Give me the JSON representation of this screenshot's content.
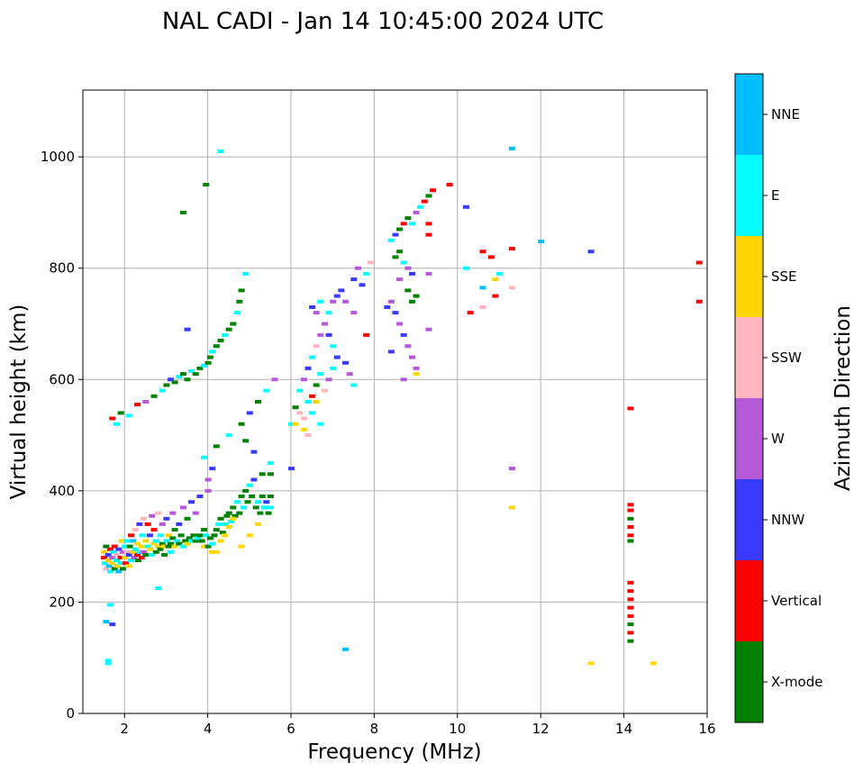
{
  "chart_data": {
    "type": "scatter",
    "title": "NAL CADI - Jan 14 10:45:00 2024 UTC",
    "xlabel": "Frequency (MHz)",
    "ylabel": "Virtual height (km)",
    "xlim": [
      1,
      16
    ],
    "ylim": [
      0,
      1120
    ],
    "xticks": [
      2,
      4,
      6,
      8,
      10,
      12,
      14,
      16
    ],
    "yticks": [
      0,
      200,
      400,
      600,
      800,
      1000
    ],
    "grid": true,
    "colorbar": {
      "label": "Azimuth Direction",
      "categories": [
        "X-mode",
        "Vertical",
        "NNW",
        "W",
        "SSW",
        "SSE",
        "E",
        "NNE"
      ],
      "colors": [
        "#008000",
        "#ff0000",
        "#3a3aff",
        "#b45ad6",
        "#ffb6c1",
        "#ffd700",
        "#00ffff",
        "#00bfff"
      ]
    },
    "points": [
      [
        1.5,
        290,
        5
      ],
      [
        1.5,
        280,
        1
      ],
      [
        1.52,
        270,
        6
      ],
      [
        1.55,
        300,
        0
      ],
      [
        1.55,
        260,
        4
      ],
      [
        1.6,
        285,
        2
      ],
      [
        1.6,
        275,
        5
      ],
      [
        1.62,
        265,
        7
      ],
      [
        1.65,
        295,
        1
      ],
      [
        1.65,
        255,
        6
      ],
      [
        1.7,
        280,
        3
      ],
      [
        1.7,
        270,
        5
      ],
      [
        1.72,
        290,
        6
      ],
      [
        1.75,
        260,
        0
      ],
      [
        1.75,
        300,
        1
      ],
      [
        1.8,
        285,
        4
      ],
      [
        1.8,
        275,
        6
      ],
      [
        1.82,
        265,
        5
      ],
      [
        1.85,
        295,
        2
      ],
      [
        1.85,
        255,
        7
      ],
      [
        1.9,
        280,
        1
      ],
      [
        1.9,
        270,
        6
      ],
      [
        1.92,
        310,
        5
      ],
      [
        1.95,
        290,
        3
      ],
      [
        1.95,
        260,
        0
      ],
      [
        2.0,
        300,
        6
      ],
      [
        2.0,
        280,
        5
      ],
      [
        2.02,
        270,
        1
      ],
      [
        2.05,
        290,
        4
      ],
      [
        2.05,
        310,
        6
      ],
      [
        2.1,
        285,
        2
      ],
      [
        2.1,
        265,
        5
      ],
      [
        2.12,
        300,
        0
      ],
      [
        2.15,
        320,
        1
      ],
      [
        2.15,
        275,
        6
      ],
      [
        2.2,
        290,
        5
      ],
      [
        2.2,
        310,
        7
      ],
      [
        2.22,
        280,
        3
      ],
      [
        2.25,
        295,
        6
      ],
      [
        2.25,
        330,
        4
      ],
      [
        2.3,
        285,
        1
      ],
      [
        2.3,
        305,
        5
      ],
      [
        2.32,
        275,
        0
      ],
      [
        2.35,
        290,
        6
      ],
      [
        2.35,
        340,
        2
      ],
      [
        2.4,
        300,
        5
      ],
      [
        2.4,
        280,
        1
      ],
      [
        2.42,
        320,
        6
      ],
      [
        2.45,
        290,
        3
      ],
      [
        2.45,
        350,
        4
      ],
      [
        2.5,
        310,
        5
      ],
      [
        2.5,
        285,
        0
      ],
      [
        2.55,
        300,
        6
      ],
      [
        2.55,
        340,
        1
      ],
      [
        2.6,
        295,
        5
      ],
      [
        2.6,
        320,
        2
      ],
      [
        2.65,
        285,
        6
      ],
      [
        2.65,
        355,
        3
      ],
      [
        2.7,
        305,
        5
      ],
      [
        2.7,
        330,
        1
      ],
      [
        2.75,
        290,
        0
      ],
      [
        2.75,
        310,
        6
      ],
      [
        2.8,
        300,
        5
      ],
      [
        2.8,
        360,
        4
      ],
      [
        2.85,
        295,
        0
      ],
      [
        2.85,
        320,
        6
      ],
      [
        2.9,
        305,
        0
      ],
      [
        2.9,
        340,
        3
      ],
      [
        2.95,
        300,
        5
      ],
      [
        2.95,
        285,
        0
      ],
      [
        3.0,
        310,
        6
      ],
      [
        3.0,
        350,
        2
      ],
      [
        3.05,
        300,
        0
      ],
      [
        3.05,
        320,
        5
      ],
      [
        3.1,
        305,
        0
      ],
      [
        3.1,
        290,
        6
      ],
      [
        3.15,
        315,
        0
      ],
      [
        3.15,
        360,
        3
      ],
      [
        3.2,
        300,
        5
      ],
      [
        3.2,
        330,
        0
      ],
      [
        3.25,
        310,
        6
      ],
      [
        3.3,
        305,
        0
      ],
      [
        3.3,
        340,
        2
      ],
      [
        3.35,
        320,
        0
      ],
      [
        3.4,
        300,
        6
      ],
      [
        3.4,
        370,
        3
      ],
      [
        3.45,
        310,
        0
      ],
      [
        3.5,
        305,
        5
      ],
      [
        3.5,
        350,
        0
      ],
      [
        3.55,
        315,
        0
      ],
      [
        3.6,
        310,
        6
      ],
      [
        3.6,
        380,
        2
      ],
      [
        3.65,
        320,
        0
      ],
      [
        3.7,
        310,
        0
      ],
      [
        3.7,
        360,
        3
      ],
      [
        3.75,
        315,
        6
      ],
      [
        3.8,
        320,
        0
      ],
      [
        3.8,
        390,
        2
      ],
      [
        3.85,
        310,
        0
      ],
      [
        3.9,
        300,
        5
      ],
      [
        3.9,
        330,
        0
      ],
      [
        3.95,
        320,
        6
      ],
      [
        4.0,
        300,
        0
      ],
      [
        4.0,
        400,
        3
      ],
      [
        4.05,
        315,
        0
      ],
      [
        4.1,
        305,
        6
      ],
      [
        4.15,
        320,
        0
      ],
      [
        4.2,
        330,
        0
      ],
      [
        4.25,
        340,
        6
      ],
      [
        4.3,
        310,
        5
      ],
      [
        4.3,
        350,
        0
      ],
      [
        4.35,
        325,
        0
      ],
      [
        4.4,
        340,
        6
      ],
      [
        4.45,
        355,
        0
      ],
      [
        4.5,
        335,
        5
      ],
      [
        4.5,
        360,
        0
      ],
      [
        4.55,
        345,
        6
      ],
      [
        4.6,
        370,
        0
      ],
      [
        4.65,
        355,
        0
      ],
      [
        4.7,
        380,
        6
      ],
      [
        4.75,
        360,
        0
      ],
      [
        4.8,
        390,
        0
      ],
      [
        4.85,
        370,
        6
      ],
      [
        4.9,
        400,
        0
      ],
      [
        4.95,
        380,
        0
      ],
      [
        5.0,
        410,
        6
      ],
      [
        5.05,
        390,
        0
      ],
      [
        5.1,
        420,
        2
      ],
      [
        5.15,
        370,
        0
      ],
      [
        5.2,
        380,
        6
      ],
      [
        5.25,
        360,
        0
      ],
      [
        5.3,
        390,
        0
      ],
      [
        5.35,
        370,
        6
      ],
      [
        5.4,
        380,
        2
      ],
      [
        5.45,
        360,
        0
      ],
      [
        5.5,
        390,
        0
      ],
      [
        5.5,
        370,
        6
      ],
      [
        4.2,
        290,
        5
      ],
      [
        4.4,
        320,
        5
      ],
      [
        4.6,
        350,
        5
      ],
      [
        4.8,
        300,
        5
      ],
      [
        5.0,
        320,
        5
      ],
      [
        5.2,
        340,
        5
      ],
      [
        4.1,
        290,
        5
      ],
      [
        4.0,
        420,
        3
      ],
      [
        4.1,
        440,
        2
      ],
      [
        3.9,
        460,
        6
      ],
      [
        4.2,
        480,
        0
      ],
      [
        4.5,
        500,
        6
      ],
      [
        4.8,
        520,
        0
      ],
      [
        5.0,
        540,
        2
      ],
      [
        5.2,
        560,
        0
      ],
      [
        5.4,
        580,
        6
      ],
      [
        5.6,
        600,
        3
      ],
      [
        5.3,
        430,
        0
      ],
      [
        5.5,
        450,
        6
      ],
      [
        5.1,
        470,
        2
      ],
      [
        4.9,
        490,
        0
      ],
      [
        5.5,
        430,
        0
      ],
      [
        1.7,
        530,
        1
      ],
      [
        1.8,
        520,
        6
      ],
      [
        1.9,
        540,
        0
      ],
      [
        2.1,
        535,
        6
      ],
      [
        2.3,
        555,
        1
      ],
      [
        2.5,
        560,
        3
      ],
      [
        2.7,
        570,
        0
      ],
      [
        2.9,
        580,
        6
      ],
      [
        3.0,
        590,
        0
      ],
      [
        3.1,
        600,
        2
      ],
      [
        3.2,
        595,
        0
      ],
      [
        3.3,
        605,
        6
      ],
      [
        3.4,
        610,
        0
      ],
      [
        3.5,
        600,
        0
      ],
      [
        3.6,
        615,
        6
      ],
      [
        3.7,
        610,
        0
      ],
      [
        3.8,
        620,
        0
      ],
      [
        3.9,
        625,
        6
      ],
      [
        4.0,
        630,
        0
      ],
      [
        4.05,
        640,
        0
      ],
      [
        4.1,
        650,
        6
      ],
      [
        4.2,
        660,
        0
      ],
      [
        4.3,
        670,
        0
      ],
      [
        4.4,
        680,
        6
      ],
      [
        4.5,
        690,
        0
      ],
      [
        4.6,
        700,
        0
      ],
      [
        4.7,
        720,
        6
      ],
      [
        4.75,
        740,
        0
      ],
      [
        4.8,
        760,
        0
      ],
      [
        4.9,
        790,
        6
      ],
      [
        3.5,
        690,
        2
      ],
      [
        3.4,
        900,
        0
      ],
      [
        3.95,
        950,
        0
      ],
      [
        4.3,
        1010,
        6
      ],
      [
        2.8,
        225,
        6
      ],
      [
        1.65,
        195,
        6
      ],
      [
        1.55,
        165,
        7
      ],
      [
        1.7,
        160,
        2
      ],
      [
        1.6,
        90,
        6
      ],
      [
        1.6,
        95,
        6
      ],
      [
        6.0,
        440,
        2
      ],
      [
        6.0,
        520,
        6
      ],
      [
        6.1,
        550,
        0
      ],
      [
        6.2,
        580,
        6
      ],
      [
        6.3,
        600,
        3
      ],
      [
        6.4,
        620,
        2
      ],
      [
        6.5,
        640,
        6
      ],
      [
        6.6,
        660,
        4
      ],
      [
        6.7,
        680,
        3
      ],
      [
        6.8,
        700,
        2
      ],
      [
        6.9,
        720,
        6
      ],
      [
        7.0,
        740,
        3
      ],
      [
        7.1,
        750,
        2
      ],
      [
        6.3,
        530,
        4
      ],
      [
        6.4,
        500,
        4
      ],
      [
        6.5,
        540,
        6
      ],
      [
        6.6,
        560,
        5
      ],
      [
        6.7,
        520,
        6
      ],
      [
        6.8,
        580,
        4
      ],
      [
        6.9,
        600,
        3
      ],
      [
        7.0,
        620,
        6
      ],
      [
        7.1,
        640,
        2
      ],
      [
        6.5,
        730,
        2
      ],
      [
        6.6,
        720,
        3
      ],
      [
        6.7,
        740,
        6
      ],
      [
        6.8,
        700,
        3
      ],
      [
        6.9,
        680,
        2
      ],
      [
        7.0,
        660,
        6
      ],
      [
        7.2,
        760,
        2
      ],
      [
        7.3,
        740,
        3
      ],
      [
        7.5,
        780,
        2
      ],
      [
        7.6,
        800,
        3
      ],
      [
        7.7,
        770,
        2
      ],
      [
        7.8,
        790,
        6
      ],
      [
        7.9,
        810,
        4
      ],
      [
        7.5,
        720,
        3
      ],
      [
        7.8,
        680,
        1
      ],
      [
        7.5,
        590,
        6
      ],
      [
        7.4,
        610,
        3
      ],
      [
        7.3,
        630,
        2
      ],
      [
        6.2,
        540,
        4
      ],
      [
        6.4,
        560,
        6
      ],
      [
        6.3,
        510,
        5
      ],
      [
        6.5,
        570,
        1
      ],
      [
        6.6,
        590,
        0
      ],
      [
        6.7,
        610,
        6
      ],
      [
        6.1,
        520,
        5
      ],
      [
        8.4,
        850,
        6
      ],
      [
        8.5,
        860,
        2
      ],
      [
        8.6,
        870,
        0
      ],
      [
        8.7,
        880,
        1
      ],
      [
        8.8,
        890,
        0
      ],
      [
        8.9,
        880,
        6
      ],
      [
        9.0,
        900,
        3
      ],
      [
        9.1,
        910,
        6
      ],
      [
        9.2,
        920,
        1
      ],
      [
        9.3,
        930,
        0
      ],
      [
        9.4,
        940,
        1
      ],
      [
        9.8,
        950,
        1
      ],
      [
        8.5,
        820,
        0
      ],
      [
        8.6,
        830,
        0
      ],
      [
        8.7,
        810,
        6
      ],
      [
        8.8,
        800,
        3
      ],
      [
        8.9,
        790,
        2
      ],
      [
        8.4,
        740,
        3
      ],
      [
        8.5,
        720,
        2
      ],
      [
        8.6,
        700,
        3
      ],
      [
        8.7,
        680,
        2
      ],
      [
        8.8,
        660,
        3
      ],
      [
        8.9,
        640,
        3
      ],
      [
        9.0,
        620,
        3
      ],
      [
        9.0,
        610,
        5
      ],
      [
        8.4,
        650,
        2
      ],
      [
        8.6,
        780,
        3
      ],
      [
        8.8,
        760,
        0
      ],
      [
        9.0,
        750,
        0
      ],
      [
        8.3,
        730,
        2
      ],
      [
        8.7,
        600,
        3
      ],
      [
        8.9,
        740,
        0
      ],
      [
        9.3,
        690,
        3
      ],
      [
        9.3,
        790,
        3
      ],
      [
        9.3,
        880,
        1
      ],
      [
        9.3,
        860,
        1
      ],
      [
        10.2,
        910,
        2
      ],
      [
        10.2,
        800,
        6
      ],
      [
        10.3,
        720,
        1
      ],
      [
        10.6,
        830,
        1
      ],
      [
        10.8,
        820,
        1
      ],
      [
        10.6,
        765,
        7
      ],
      [
        10.6,
        730,
        4
      ],
      [
        10.9,
        750,
        1
      ],
      [
        10.9,
        780,
        5
      ],
      [
        11.0,
        790,
        6
      ],
      [
        11.3,
        835,
        1
      ],
      [
        11.3,
        765,
        4
      ],
      [
        11.3,
        440,
        3
      ],
      [
        11.3,
        370,
        5
      ],
      [
        11.3,
        1015,
        7
      ],
      [
        12.0,
        848,
        7
      ],
      [
        13.2,
        830,
        2
      ],
      [
        13.2,
        90,
        5
      ],
      [
        14.7,
        90,
        5
      ],
      [
        7.3,
        115,
        7
      ],
      [
        15.8,
        810,
        1
      ],
      [
        15.8,
        740,
        1
      ],
      [
        14.15,
        130,
        0
      ],
      [
        14.15,
        145,
        1
      ],
      [
        14.15,
        160,
        0
      ],
      [
        14.15,
        175,
        1
      ],
      [
        14.15,
        190,
        1
      ],
      [
        14.15,
        205,
        1
      ],
      [
        14.15,
        220,
        1
      ],
      [
        14.15,
        235,
        1
      ],
      [
        14.15,
        310,
        0
      ],
      [
        14.15,
        320,
        1
      ],
      [
        14.15,
        335,
        1
      ],
      [
        14.15,
        350,
        0
      ],
      [
        14.15,
        365,
        1
      ],
      [
        14.15,
        375,
        1
      ],
      [
        14.15,
        548,
        1
      ]
    ]
  }
}
